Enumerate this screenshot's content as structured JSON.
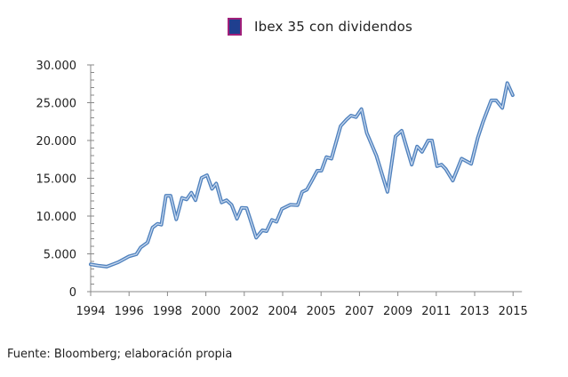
{
  "chart_data": {
    "type": "line",
    "title": "",
    "xlabel": "",
    "ylabel": "",
    "x_tick_labels": [
      "1994",
      "1996",
      "1998",
      "2000",
      "2002",
      "2004",
      "2005",
      "2007",
      "2009",
      "2011",
      "2013",
      "2015"
    ],
    "y_tick_labels": [
      "0",
      "5.000",
      "10.000",
      "15.000",
      "20.000",
      "25.000",
      "30.000"
    ],
    "y_ticks": [
      0,
      5000,
      10000,
      15000,
      20000,
      25000,
      30000
    ],
    "ylim": [
      0,
      30000
    ],
    "grid": false,
    "legend_position": "top",
    "series": [
      {
        "name": "Ibex 35 con dividendos",
        "color": "#4f81bd",
        "points": [
          [
            0,
            3610
          ],
          [
            0.19,
            3450
          ],
          [
            0.42,
            3300
          ],
          [
            0.72,
            3900
          ],
          [
            1.0,
            4670
          ],
          [
            1.19,
            4940
          ],
          [
            1.3,
            5840
          ],
          [
            1.48,
            6500
          ],
          [
            1.61,
            8470
          ],
          [
            1.74,
            8980
          ],
          [
            1.84,
            8860
          ],
          [
            1.96,
            12700
          ],
          [
            2.08,
            12700
          ],
          [
            2.23,
            9570
          ],
          [
            2.38,
            12400
          ],
          [
            2.5,
            12200
          ],
          [
            2.62,
            13100
          ],
          [
            2.73,
            12100
          ],
          [
            2.89,
            15060
          ],
          [
            3.03,
            15400
          ],
          [
            3.16,
            13600
          ],
          [
            3.27,
            14300
          ],
          [
            3.41,
            11800
          ],
          [
            3.54,
            12100
          ],
          [
            3.67,
            11500
          ],
          [
            3.81,
            9650
          ],
          [
            3.93,
            11100
          ],
          [
            4.06,
            11060
          ],
          [
            4.31,
            7140
          ],
          [
            4.47,
            8120
          ],
          [
            4.58,
            8000
          ],
          [
            4.72,
            9490
          ],
          [
            4.84,
            9250
          ],
          [
            4.98,
            10940
          ],
          [
            5.2,
            11500
          ],
          [
            5.39,
            11450
          ],
          [
            5.51,
            13200
          ],
          [
            5.63,
            13500
          ],
          [
            5.74,
            14500
          ],
          [
            5.9,
            16000
          ],
          [
            6.01,
            16000
          ],
          [
            6.14,
            17800
          ],
          [
            6.27,
            17600
          ],
          [
            6.51,
            21900
          ],
          [
            6.67,
            22800
          ],
          [
            6.78,
            23300
          ],
          [
            6.91,
            23100
          ],
          [
            7.05,
            24150
          ],
          [
            7.19,
            21000
          ],
          [
            7.44,
            18000
          ],
          [
            7.73,
            13200
          ],
          [
            7.94,
            20550
          ],
          [
            8.1,
            21300
          ],
          [
            8.36,
            16800
          ],
          [
            8.5,
            19200
          ],
          [
            8.63,
            18500
          ],
          [
            8.79,
            20000
          ],
          [
            8.89,
            20000
          ],
          [
            9.02,
            16600
          ],
          [
            9.14,
            16800
          ],
          [
            9.25,
            16200
          ],
          [
            9.43,
            14700
          ],
          [
            9.66,
            17600
          ],
          [
            9.91,
            16900
          ],
          [
            10.08,
            20350
          ],
          [
            10.22,
            22500
          ],
          [
            10.43,
            25300
          ],
          [
            10.56,
            25300
          ],
          [
            10.72,
            24300
          ],
          [
            10.85,
            27600
          ],
          [
            10.99,
            26000
          ]
        ]
      }
    ]
  },
  "legend": {
    "label": "Ibex 35 con dividendos",
    "swatch_fill": "#1f3f8f",
    "swatch_border": "#a0207a"
  },
  "source": "Fuente: Bloomberg; elaboración propia"
}
